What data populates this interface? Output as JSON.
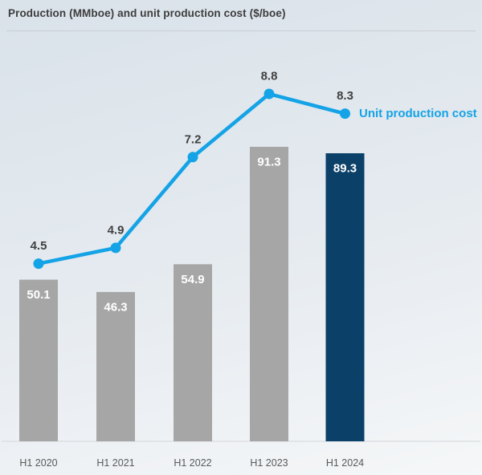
{
  "title": {
    "text": "Production (MMboe) and unit production cost ($/boe)"
  },
  "legend": {
    "label": "Unit production cost"
  },
  "chart_data": {
    "type": "combo",
    "title": "Production (MMboe) and unit production cost ($/boe)",
    "categories": [
      "H1 2020",
      "H1 2021",
      "H1 2022",
      "H1 2023",
      "H1 2024"
    ],
    "series": [
      {
        "name": "Production",
        "type": "bar",
        "unit": "MMboe",
        "values": [
          50.1,
          46.3,
          54.9,
          91.3,
          89.3
        ],
        "data_labels": [
          "50.1",
          "46.3",
          "54.9",
          "91.3",
          "89.3"
        ],
        "highlight_index": 4
      },
      {
        "name": "Unit production cost",
        "type": "line",
        "unit": "$/boe",
        "values": [
          4.5,
          4.9,
          7.2,
          8.8,
          8.3
        ],
        "data_labels": [
          "4.5",
          "4.9",
          "7.2",
          "8.8",
          "8.3"
        ]
      }
    ],
    "data_labels": true,
    "grid": false,
    "legend_position": "right of last line point",
    "colors": {
      "bar": "#a6a6a6",
      "bar_highlight": "#0b4069",
      "line": "#14a3e6",
      "point_label": "#404040",
      "bar_label": "#ffffff",
      "axis_label": "#595959",
      "axis_line": "#d9dcdf"
    }
  }
}
